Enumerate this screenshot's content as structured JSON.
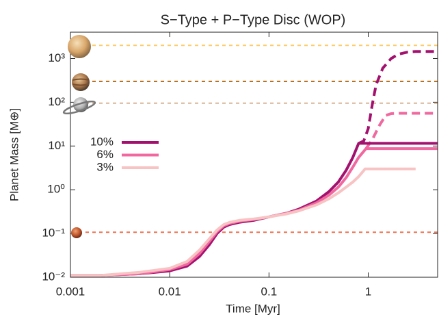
{
  "chart_data": {
    "type": "line",
    "title": "S−Type + P−Type Disc (WOP)",
    "x_label": "Time [Myr]",
    "y_label": "Planet Mass [M⊕]",
    "xscale": "log",
    "yscale": "log",
    "xlim": [
      0.001,
      5
    ],
    "ylim": [
      0.01,
      4000
    ],
    "xticks": [
      0.001,
      0.01,
      0.1,
      1
    ],
    "yticks": [
      {
        "value": 0.01,
        "label": "10⁻²"
      },
      {
        "value": 0.1,
        "label": "10⁻¹"
      },
      {
        "value": 1,
        "label": "10⁰"
      },
      {
        "value": 10,
        "label": "10¹"
      },
      {
        "value": 100,
        "label": "10²"
      },
      {
        "value": 1000,
        "label": "10³"
      }
    ],
    "legend": "center left",
    "reference_lines": [
      {
        "value": 2000,
        "color": "#ffcc66"
      },
      {
        "value": 300,
        "color": "#b8680c"
      },
      {
        "value": 95,
        "color": "#d9b595"
      },
      {
        "value": 0.107,
        "color": "#f2704f"
      }
    ],
    "series": [
      {
        "name": "10%",
        "color": "#a3116f",
        "x": [
          0.001,
          0.002,
          0.005,
          0.01,
          0.015,
          0.02,
          0.025,
          0.03,
          0.035,
          0.04,
          0.05,
          0.07,
          0.1,
          0.15,
          0.2,
          0.3,
          0.4,
          0.5,
          0.6,
          0.7,
          0.8,
          5
        ],
        "values": [
          0.011,
          0.011,
          0.012,
          0.014,
          0.018,
          0.03,
          0.055,
          0.1,
          0.14,
          0.16,
          0.18,
          0.2,
          0.24,
          0.29,
          0.36,
          0.55,
          0.9,
          1.5,
          2.8,
          5.5,
          11.5,
          11.5
        ],
        "dashed_x": [
          0.8,
          0.9,
          1.0,
          1.1,
          1.2,
          1.4,
          1.7,
          2,
          2.5,
          3,
          5
        ],
        "dashed_values": [
          11.5,
          13,
          25,
          90,
          250,
          600,
          1000,
          1250,
          1400,
          1450,
          1450
        ]
      },
      {
        "name": "6%",
        "color": "#f0689f",
        "x": [
          0.001,
          0.002,
          0.005,
          0.01,
          0.015,
          0.02,
          0.025,
          0.03,
          0.035,
          0.04,
          0.05,
          0.07,
          0.1,
          0.15,
          0.2,
          0.3,
          0.4,
          0.5,
          0.6,
          0.7,
          0.8,
          0.95,
          5
        ],
        "values": [
          0.011,
          0.011,
          0.012,
          0.015,
          0.02,
          0.035,
          0.065,
          0.11,
          0.15,
          0.17,
          0.19,
          0.21,
          0.24,
          0.29,
          0.34,
          0.5,
          0.75,
          1.15,
          1.9,
          3.3,
          5.5,
          8.7,
          8.7
        ],
        "dashed_x": [
          0.95,
          1.1,
          1.3,
          1.5,
          1.7,
          2,
          5
        ],
        "dashed_values": [
          8.7,
          14,
          30,
          50,
          55,
          56,
          56
        ]
      },
      {
        "name": "3%",
        "color": "#f7c3c3",
        "x": [
          0.001,
          0.002,
          0.005,
          0.01,
          0.015,
          0.02,
          0.025,
          0.03,
          0.035,
          0.04,
          0.05,
          0.07,
          0.1,
          0.15,
          0.2,
          0.3,
          0.4,
          0.5,
          0.6,
          0.7,
          0.8,
          0.93,
          3
        ],
        "values": [
          0.011,
          0.011,
          0.013,
          0.016,
          0.023,
          0.042,
          0.075,
          0.12,
          0.16,
          0.18,
          0.2,
          0.215,
          0.24,
          0.28,
          0.33,
          0.45,
          0.62,
          0.85,
          1.15,
          1.5,
          2.0,
          3.0,
          3.0
        ]
      }
    ]
  }
}
